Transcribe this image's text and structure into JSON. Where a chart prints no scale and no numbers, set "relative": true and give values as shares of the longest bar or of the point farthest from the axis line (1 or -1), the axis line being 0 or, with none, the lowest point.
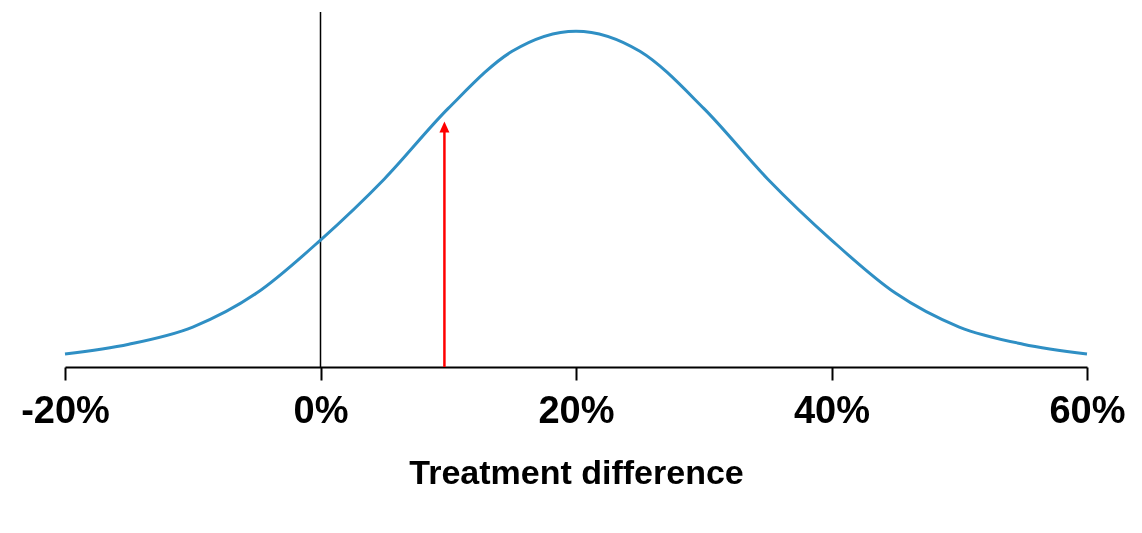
{
  "chart_data": {
    "type": "line",
    "relative": true,
    "xlabel": "Treatment difference",
    "xlim": [
      -20,
      60
    ],
    "xticks": [
      {
        "value": -20,
        "label": "-20%"
      },
      {
        "value": 0,
        "label": "0%"
      },
      {
        "value": 20,
        "label": "20%"
      },
      {
        "value": 40,
        "label": "40%"
      },
      {
        "value": 60,
        "label": "60%"
      }
    ],
    "x": [
      -20,
      -15,
      -10,
      -5,
      0,
      5,
      10,
      15,
      20,
      25,
      30,
      35,
      40,
      45,
      50,
      55,
      60
    ],
    "series": [
      {
        "color": "#2f8fc4",
        "values": [
          0.039,
          0.068,
          0.119,
          0.22,
          0.378,
          0.56,
          0.77,
          0.94,
          1,
          0.94,
          0.77,
          0.56,
          0.378,
          0.22,
          0.119,
          0.068,
          0.039
        ]
      }
    ],
    "ref_lines": [
      {
        "axis": "x",
        "value": 9.7,
        "color": "#ff0000"
      }
    ],
    "marker": "none",
    "line_style": "solid"
  }
}
